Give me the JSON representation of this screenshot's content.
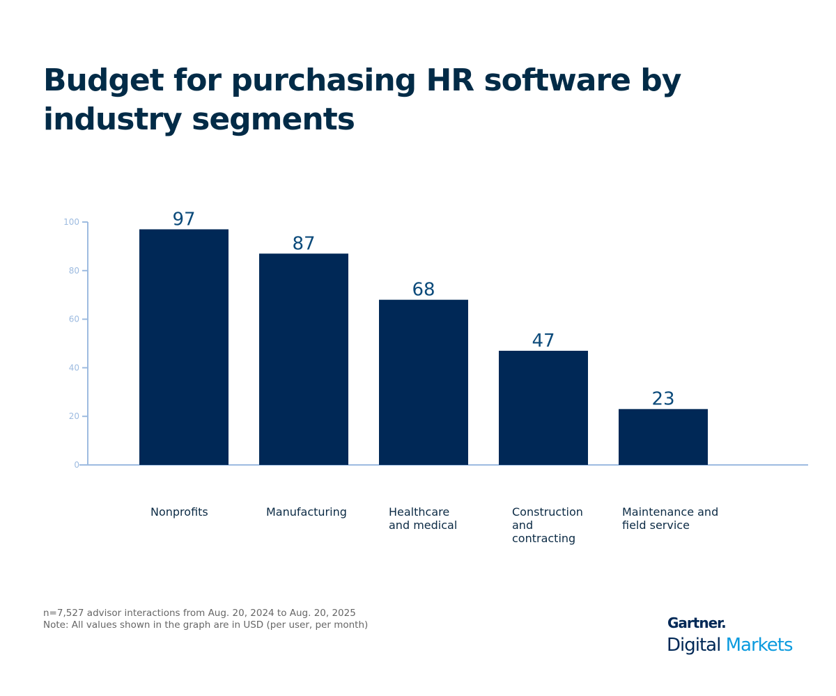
{
  "chart_data": {
    "type": "bar",
    "title": "Budget for purchasing HR software by industry segments",
    "categories": [
      "Nonprofits",
      "Manufacturing",
      "Healthcare and medical",
      "Construction and contracting",
      "Maintenance and field service"
    ],
    "category_lines": [
      [
        "Nonprofits"
      ],
      [
        "Manufacturing"
      ],
      [
        "Healthcare",
        "and medical"
      ],
      [
        "Construction",
        "and",
        "contracting"
      ],
      [
        "Maintenance and",
        "field service"
      ]
    ],
    "values": [
      97,
      87,
      68,
      47,
      23
    ],
    "data_labels": [
      "97",
      "87",
      "68",
      "47",
      "23"
    ],
    "xlabel": "",
    "ylabel": "",
    "ylim": [
      0,
      100
    ],
    "yticks": [
      0,
      20,
      40,
      60,
      80,
      100
    ],
    "grid": false,
    "colors": {
      "bar": "#002856",
      "axis": "#9dbbe0",
      "label": "#0b4a7a",
      "title": "#022b47"
    }
  },
  "footer": {
    "note1": "n=7,527 advisor interactions from Aug. 20, 2024 to Aug. 20, 2025",
    "note2": "Note: All values shown in the graph are in USD (per user, per month)"
  },
  "logo": {
    "line1": "Gartner.",
    "line2a": "Digital",
    "line2b": "Markets"
  }
}
